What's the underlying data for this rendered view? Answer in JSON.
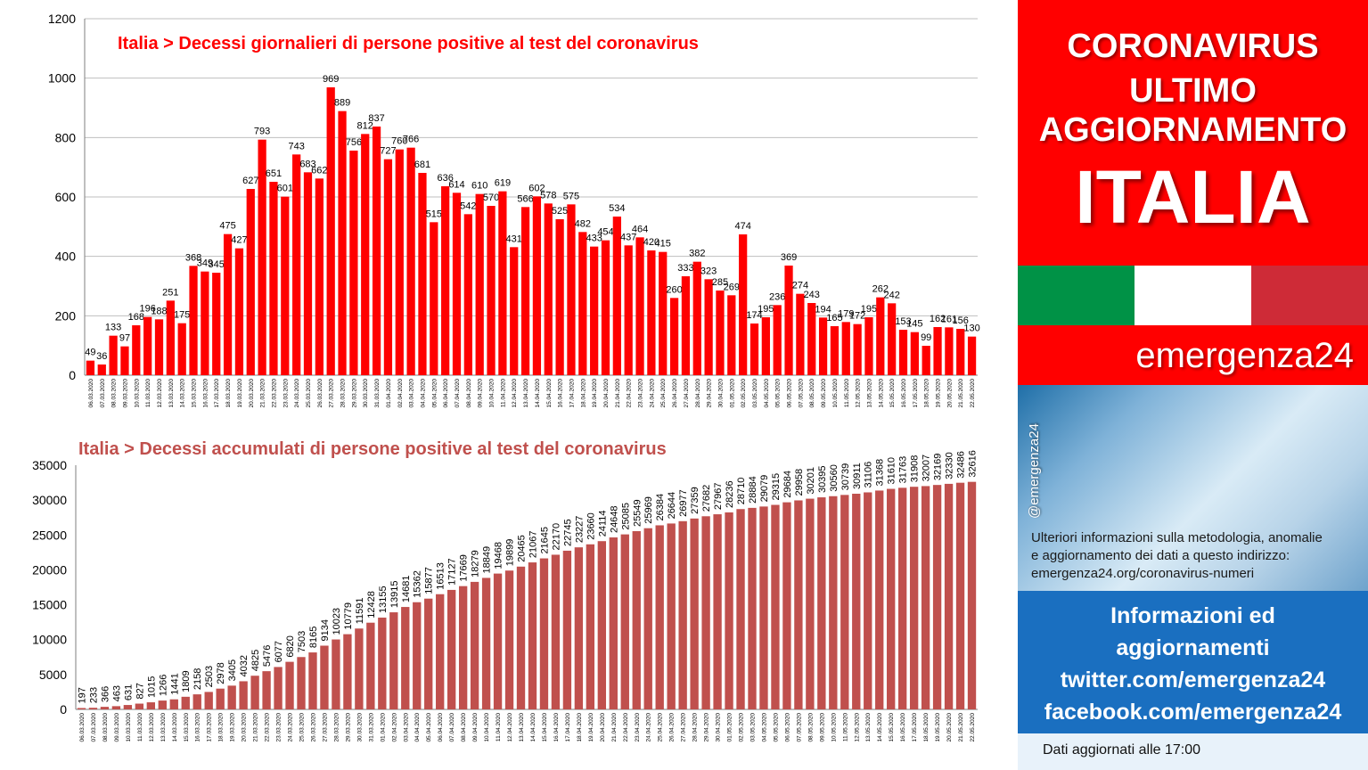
{
  "sidebar": {
    "headline": [
      "CORONAVIRUS",
      "ULTIMO",
      "AGGIORNAMENTO"
    ],
    "country": "ITALIA",
    "flag_colors": [
      "#009246",
      "#ffffff",
      "#ce2b37"
    ],
    "brand": "emergenza24",
    "handle": "@emergenza24",
    "info_lines": [
      "Ulteriori informazioni sulla metodologia, anomalie",
      "e aggiornamento dei dati a questo indirizzo:",
      "emergenza24.org/coronavirus-numeri"
    ],
    "social_lines": [
      "Informazioni ed",
      "aggiornamenti",
      "twitter.com/emergenza24",
      "facebook.com/emergenza24"
    ],
    "updated": "Dati aggiornati alle 17:00"
  },
  "colors": {
    "daily_bar": "#ff0000",
    "cumulative_bar": "#c0504d",
    "brand_red": "#ff0000",
    "social_blue": "#1a6fc0"
  },
  "chart_data": [
    {
      "type": "bar",
      "title": "Italia > Decessi giornalieri di persone positive al test del coronavirus",
      "categories": [
        "06.03.2020",
        "07.03.2020",
        "08.03.2020",
        "09.03.2020",
        "10.03.2020",
        "11.03.2020",
        "12.03.2020",
        "13.03.2020",
        "14.03.2020",
        "15.03.2020",
        "16.03.2020",
        "17.03.2020",
        "18.03.2020",
        "19.03.2020",
        "20.03.2020",
        "21.03.2020",
        "22.03.2020",
        "23.03.2020",
        "24.03.2020",
        "25.03.2020",
        "26.03.2020",
        "27.03.2020",
        "28.03.2020",
        "29.03.2020",
        "30.03.2020",
        "31.03.2020",
        "01.04.2020",
        "02.04.2020",
        "03.04.2020",
        "04.04.2020",
        "05.04.2020",
        "06.04.2020",
        "07.04.2020",
        "08.04.2020",
        "09.04.2020",
        "10.04.2020",
        "11.04.2020",
        "12.04.2020",
        "13.04.2020",
        "14.04.2020",
        "15.04.2020",
        "16.04.2020",
        "17.04.2020",
        "18.04.2020",
        "19.04.2020",
        "20.04.2020",
        "21.04.2020",
        "22.04.2020",
        "23.04.2020",
        "24.04.2020",
        "25.04.2020",
        "26.04.2020",
        "27.04.2020",
        "28.04.2020",
        "29.04.2020",
        "30.04.2020",
        "01.05.2020",
        "02.05.2020",
        "03.05.2020",
        "04.05.2020",
        "05.05.2020",
        "06.05.2020",
        "07.05.2020",
        "08.05.2020",
        "09.05.2020",
        "10.05.2020",
        "11.05.2020",
        "12.05.2020",
        "13.05.2020",
        "14.05.2020",
        "15.05.2020",
        "16.05.2020",
        "17.05.2020",
        "18.05.2020",
        "19.05.2020",
        "20.05.2020",
        "21.05.2020",
        "22.05.2020"
      ],
      "values": [
        49,
        36,
        133,
        97,
        168,
        196,
        188,
        251,
        175,
        368,
        349,
        345,
        475,
        427,
        627,
        793,
        651,
        601,
        743,
        683,
        662,
        969,
        889,
        756,
        812,
        837,
        727,
        760,
        766,
        681,
        515,
        636,
        614,
        542,
        610,
        570,
        619,
        431,
        566,
        602,
        578,
        525,
        575,
        482,
        433,
        454,
        534,
        437,
        464,
        420,
        415,
        260,
        333,
        382,
        323,
        285,
        269,
        474,
        174,
        195,
        236,
        369,
        274,
        243,
        194,
        165,
        179,
        172,
        195,
        262,
        242,
        153,
        145,
        99,
        162,
        161,
        156,
        130
      ],
      "ylim": [
        0,
        1200
      ],
      "yticks": [
        0,
        200,
        400,
        600,
        800,
        1000,
        1200
      ],
      "grid": true,
      "xlabel": "",
      "ylabel": ""
    },
    {
      "type": "bar",
      "title": "Italia > Decessi accumulati di persone positive al test del coronavirus",
      "categories": [
        "06.03.2020",
        "07.03.2020",
        "08.03.2020",
        "09.03.2020",
        "10.03.2020",
        "11.03.2020",
        "12.03.2020",
        "13.03.2020",
        "14.03.2020",
        "15.03.2020",
        "16.03.2020",
        "17.03.2020",
        "18.03.2020",
        "19.03.2020",
        "20.03.2020",
        "21.03.2020",
        "22.03.2020",
        "23.03.2020",
        "24.03.2020",
        "25.03.2020",
        "26.03.2020",
        "27.03.2020",
        "28.03.2020",
        "29.03.2020",
        "30.03.2020",
        "31.03.2020",
        "01.04.2020",
        "02.04.2020",
        "03.04.2020",
        "04.04.2020",
        "05.04.2020",
        "06.04.2020",
        "07.04.2020",
        "08.04.2020",
        "09.04.2020",
        "10.04.2020",
        "11.04.2020",
        "12.04.2020",
        "13.04.2020",
        "14.04.2020",
        "15.04.2020",
        "16.04.2020",
        "17.04.2020",
        "18.04.2020",
        "19.04.2020",
        "20.04.2020",
        "21.04.2020",
        "22.04.2020",
        "23.04.2020",
        "24.04.2020",
        "25.04.2020",
        "26.04.2020",
        "27.04.2020",
        "28.04.2020",
        "29.04.2020",
        "30.04.2020",
        "01.05.2020",
        "02.05.2020",
        "03.05.2020",
        "04.05.2020",
        "05.05.2020",
        "06.05.2020",
        "07.05.2020",
        "08.05.2020",
        "09.05.2020",
        "10.05.2020",
        "11.05.2020",
        "12.05.2020",
        "13.05.2020",
        "14.05.2020",
        "15.05.2020",
        "16.05.2020",
        "17.05.2020",
        "18.05.2020",
        "19.05.2020",
        "20.05.2020",
        "21.05.2020",
        "22.05.2020"
      ],
      "values": [
        197,
        233,
        366,
        463,
        631,
        827,
        1015,
        1266,
        1441,
        1809,
        2158,
        2503,
        2978,
        3405,
        4032,
        4825,
        5476,
        6077,
        6820,
        7503,
        8165,
        9134,
        10023,
        10779,
        11591,
        12428,
        13155,
        13915,
        14681,
        15362,
        15877,
        16513,
        17127,
        17669,
        18279,
        18849,
        19468,
        19899,
        20465,
        21067,
        21645,
        22170,
        22745,
        23227,
        23660,
        24114,
        24648,
        25085,
        25549,
        25969,
        26384,
        26644,
        26977,
        27359,
        27682,
        27967,
        28236,
        28710,
        28884,
        29079,
        29315,
        29684,
        29958,
        30201,
        30395,
        30560,
        30739,
        30911,
        31106,
        31368,
        31610,
        31763,
        31908,
        32007,
        32169,
        32330,
        32486,
        32616
      ],
      "ylim": [
        0,
        35000
      ],
      "yticks": [
        0,
        5000,
        10000,
        15000,
        20000,
        25000,
        30000,
        35000
      ],
      "grid": false,
      "xlabel": "",
      "ylabel": ""
    }
  ]
}
